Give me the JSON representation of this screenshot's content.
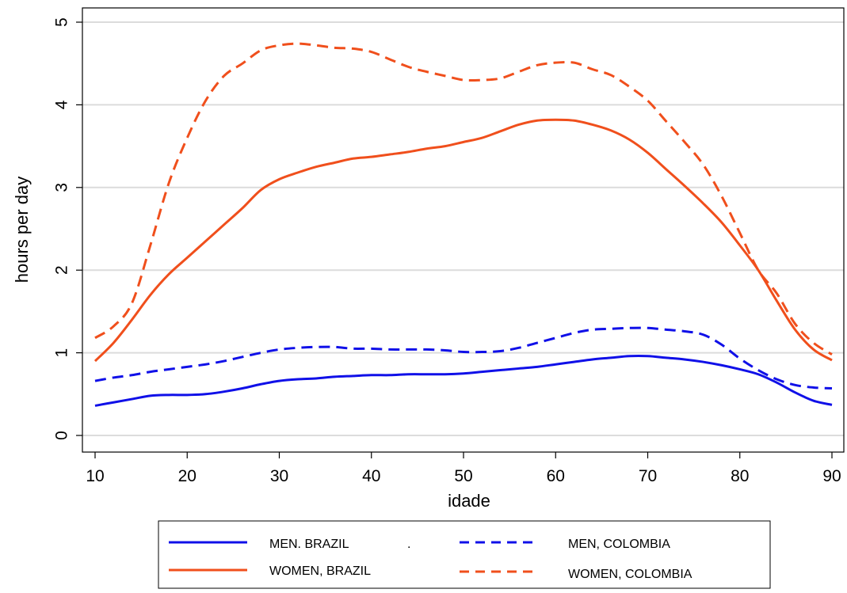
{
  "chart_data": {
    "type": "line",
    "xlabel": "idade",
    "ylabel": "hours per day",
    "xlim": [
      10,
      90
    ],
    "ylim": [
      0,
      5
    ],
    "xticks": [
      10,
      20,
      30,
      40,
      50,
      60,
      70,
      80,
      90
    ],
    "yticks": [
      0,
      1,
      2,
      3,
      4,
      5
    ],
    "grid": true,
    "legend_placement": "bottom",
    "legend_stray_mark": ".",
    "series": [
      {
        "name": "MEN. BRAZIL",
        "color": "#1010e8",
        "style": "solid",
        "x": [
          10,
          12,
          14,
          16,
          18,
          20,
          22,
          24,
          26,
          28,
          30,
          32,
          34,
          36,
          38,
          40,
          42,
          44,
          46,
          48,
          50,
          52,
          54,
          56,
          58,
          60,
          62,
          64,
          66,
          68,
          70,
          72,
          74,
          76,
          78,
          80,
          82,
          84,
          86,
          88,
          90
        ],
        "values": [
          0.36,
          0.4,
          0.44,
          0.48,
          0.49,
          0.49,
          0.5,
          0.53,
          0.57,
          0.62,
          0.66,
          0.68,
          0.69,
          0.71,
          0.72,
          0.73,
          0.73,
          0.74,
          0.74,
          0.74,
          0.75,
          0.77,
          0.79,
          0.81,
          0.83,
          0.86,
          0.89,
          0.92,
          0.94,
          0.96,
          0.96,
          0.94,
          0.92,
          0.89,
          0.85,
          0.8,
          0.74,
          0.64,
          0.52,
          0.42,
          0.37
        ]
      },
      {
        "name": "WOMEN, BRAZIL",
        "color": "#f04f1c",
        "style": "solid",
        "x": [
          10,
          12,
          14,
          16,
          18,
          20,
          22,
          24,
          26,
          28,
          30,
          32,
          34,
          36,
          38,
          40,
          42,
          44,
          46,
          48,
          50,
          52,
          54,
          56,
          58,
          60,
          62,
          64,
          66,
          68,
          70,
          72,
          74,
          76,
          78,
          80,
          82,
          84,
          86,
          88,
          90
        ],
        "values": [
          0.9,
          1.12,
          1.4,
          1.7,
          1.95,
          2.15,
          2.35,
          2.55,
          2.75,
          2.97,
          3.1,
          3.18,
          3.25,
          3.3,
          3.35,
          3.37,
          3.4,
          3.43,
          3.47,
          3.5,
          3.55,
          3.6,
          3.68,
          3.76,
          3.81,
          3.82,
          3.81,
          3.76,
          3.69,
          3.58,
          3.42,
          3.22,
          3.02,
          2.81,
          2.58,
          2.3,
          2.0,
          1.63,
          1.28,
          1.04,
          0.91
        ]
      },
      {
        "name": "MEN, COLOMBIA",
        "color": "#1010e8",
        "style": "dashed",
        "x": [
          10,
          12,
          14,
          16,
          18,
          20,
          22,
          24,
          26,
          28,
          30,
          32,
          34,
          36,
          38,
          40,
          42,
          44,
          46,
          48,
          50,
          52,
          54,
          56,
          58,
          60,
          62,
          64,
          66,
          68,
          70,
          72,
          74,
          76,
          78,
          80,
          82,
          84,
          86,
          88,
          90
        ],
        "values": [
          0.66,
          0.7,
          0.73,
          0.77,
          0.8,
          0.83,
          0.86,
          0.9,
          0.95,
          1.0,
          1.04,
          1.06,
          1.07,
          1.07,
          1.05,
          1.05,
          1.04,
          1.04,
          1.04,
          1.03,
          1.01,
          1.01,
          1.02,
          1.06,
          1.12,
          1.18,
          1.24,
          1.28,
          1.29,
          1.3,
          1.3,
          1.28,
          1.26,
          1.22,
          1.1,
          0.93,
          0.79,
          0.68,
          0.61,
          0.58,
          0.57
        ]
      },
      {
        "name": "WOMEN, COLOMBIA",
        "color": "#f04f1c",
        "style": "dashed",
        "x": [
          10,
          12,
          14,
          16,
          18,
          20,
          22,
          24,
          26,
          28,
          30,
          32,
          34,
          36,
          38,
          40,
          42,
          44,
          46,
          48,
          50,
          52,
          54,
          56,
          58,
          60,
          62,
          64,
          66,
          68,
          70,
          72,
          74,
          76,
          78,
          80,
          82,
          84,
          86,
          88,
          90
        ],
        "values": [
          1.18,
          1.32,
          1.6,
          2.3,
          3.05,
          3.6,
          4.05,
          4.35,
          4.5,
          4.66,
          4.72,
          4.74,
          4.72,
          4.69,
          4.68,
          4.64,
          4.55,
          4.46,
          4.4,
          4.35,
          4.3,
          4.3,
          4.32,
          4.4,
          4.48,
          4.51,
          4.51,
          4.43,
          4.36,
          4.22,
          4.05,
          3.8,
          3.55,
          3.28,
          2.9,
          2.45,
          2.0,
          1.72,
          1.35,
          1.12,
          0.98
        ]
      }
    ]
  }
}
